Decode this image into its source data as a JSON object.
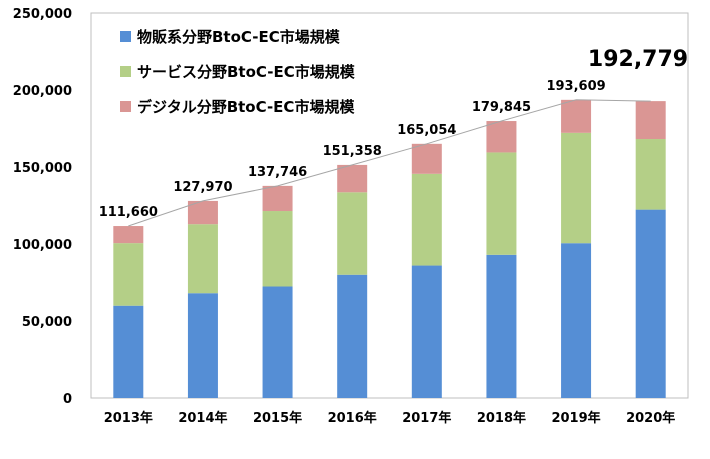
{
  "chart_data": {
    "type": "bar",
    "stacked": true,
    "categories": [
      "2013年",
      "2014年",
      "2015年",
      "2016年",
      "2017年",
      "2018年",
      "2019年",
      "2020年"
    ],
    "series": [
      {
        "name": "物販系分野BtoC-EC市場規模",
        "color": "#558ED5",
        "values": [
          59931,
          68043,
          72398,
          80043,
          86008,
          92992,
          100515,
          122333
        ]
      },
      {
        "name": "サービス分野BtoC-EC市場規模",
        "color": "#B4CF87",
        "values": [
          40633,
          44816,
          49014,
          53532,
          59568,
          66471,
          71672,
          45832
        ]
      },
      {
        "name": "デジタル分野BtoC-EC市場規模",
        "color": "#DA9694",
        "values": [
          11096,
          15111,
          16334,
          17783,
          19478,
          20382,
          21422,
          24614
        ]
      }
    ],
    "totals": [
      "111,660",
      "127,970",
      "137,746",
      "151,358",
      "165,054",
      "179,845",
      "193,609",
      "192,779"
    ],
    "total_values": [
      111660,
      127970,
      137746,
      151358,
      165054,
      179845,
      193609,
      192779
    ],
    "highlight_total_index": 7,
    "ylim": [
      0,
      250000
    ],
    "yticks": [
      0,
      50000,
      100000,
      150000,
      200000,
      250000
    ],
    "ytick_labels": [
      "0",
      "50,000",
      "100,000",
      "150,000",
      "200,000",
      "250,000"
    ],
    "title": "",
    "xlabel": "",
    "ylabel": "",
    "grid": false,
    "legend_position": "top-left",
    "trend_line": true
  }
}
